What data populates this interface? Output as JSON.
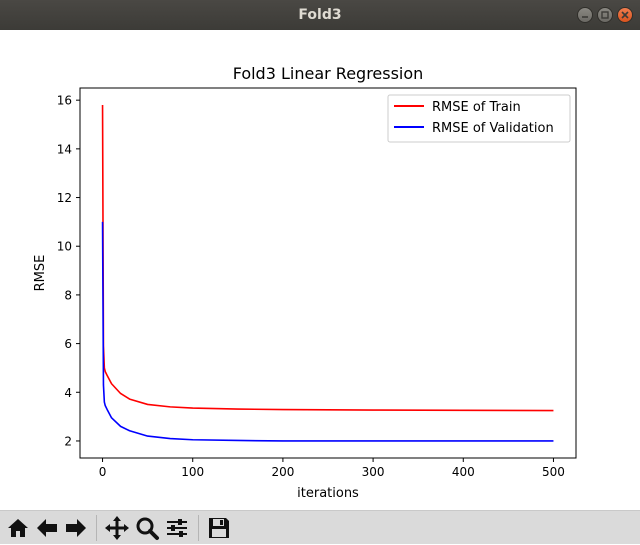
{
  "window": {
    "title": "Fold3"
  },
  "toolbar": {
    "buttons": [
      "home-icon",
      "back-arrow-icon",
      "forward-arrow-icon",
      "pan-icon",
      "zoom-icon",
      "configure-subplots-icon",
      "save-icon"
    ]
  },
  "chart_data": {
    "type": "line",
    "title": "Fold3 Linear Regression",
    "xlabel": "iterations",
    "ylabel": "RMSE",
    "xlim": [
      -25,
      525
    ],
    "ylim": [
      1.3,
      16.5
    ],
    "xticks": [
      0,
      100,
      200,
      300,
      400,
      500
    ],
    "yticks": [
      2,
      4,
      6,
      8,
      10,
      12,
      14,
      16
    ],
    "grid": false,
    "legend_position": "top-right",
    "series": [
      {
        "name": "RMSE of Train",
        "color": "#ff0000",
        "x": [
          0,
          1,
          2,
          3,
          5,
          10,
          20,
          30,
          50,
          75,
          100,
          150,
          200,
          250,
          300,
          400,
          500
        ],
        "y": [
          15.8,
          5.9,
          5.0,
          4.85,
          4.7,
          4.35,
          3.95,
          3.72,
          3.5,
          3.4,
          3.35,
          3.31,
          3.29,
          3.28,
          3.27,
          3.26,
          3.25
        ]
      },
      {
        "name": "RMSE of Validation",
        "color": "#0000ff",
        "x": [
          0,
          1,
          2,
          3,
          5,
          10,
          20,
          30,
          50,
          75,
          100,
          150,
          200,
          250,
          300,
          400,
          500
        ],
        "y": [
          11.0,
          4.3,
          3.6,
          3.45,
          3.3,
          2.95,
          2.6,
          2.42,
          2.2,
          2.1,
          2.05,
          2.02,
          2.0,
          2.0,
          2.0,
          2.0,
          2.0
        ]
      }
    ]
  }
}
